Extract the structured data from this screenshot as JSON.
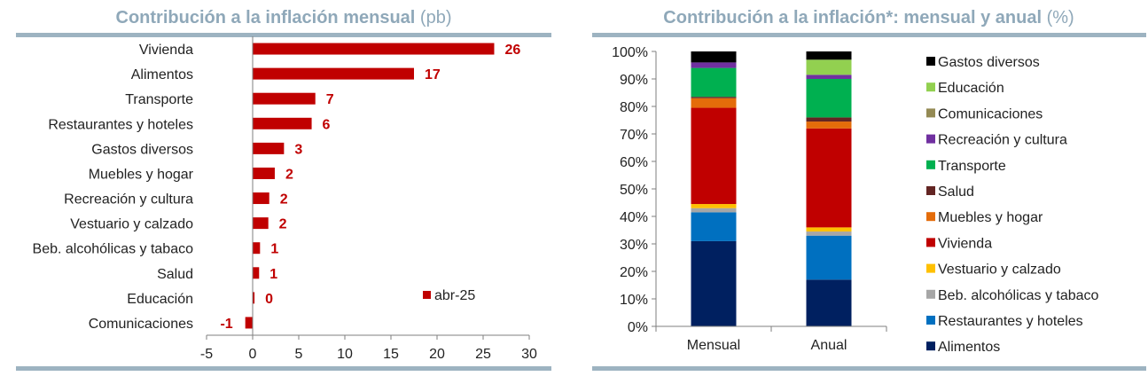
{
  "chart_data": [
    {
      "type": "bar",
      "orientation": "horizontal",
      "title": "Contribución a la inflación mensual",
      "unit": "(pb)",
      "categories": [
        "Vivienda",
        "Alimentos",
        "Transporte",
        "Restaurantes y hoteles",
        "Gastos diversos",
        "Muebles y hogar",
        "Recreación y cultura",
        "Vestuario y calzado",
        "Beb. alcohólicas y tabaco",
        "Salud",
        "Educación",
        "Comunicaciones"
      ],
      "values": [
        26.2,
        17.5,
        6.8,
        6.4,
        3.4,
        2.4,
        1.8,
        1.7,
        0.8,
        0.7,
        0.2,
        -0.8
      ],
      "data_labels": [
        "26",
        "17",
        "7",
        "6",
        "3",
        "2",
        "2",
        "2",
        "1",
        "1",
        "0",
        "-1"
      ],
      "series": [
        {
          "name": "abr-25",
          "color": "#c00000"
        }
      ],
      "xlim": [
        -5,
        30
      ],
      "xticks": [
        "-5",
        "0",
        "5",
        "10",
        "15",
        "20",
        "25",
        "30"
      ],
      "legend_position": "bottom-right",
      "grid": false
    },
    {
      "type": "bar",
      "stacked": true,
      "percent": true,
      "title": "Contribución a la inflación*: mensual y anual",
      "unit": "(%)",
      "categories": [
        "Mensual",
        "Anual"
      ],
      "yticks": [
        "0%",
        "10%",
        "20%",
        "30%",
        "40%",
        "50%",
        "60%",
        "70%",
        "80%",
        "90%",
        "100%"
      ],
      "ylim": [
        0,
        100
      ],
      "grid": false,
      "legend_position": "right",
      "series": [
        {
          "name": "Alimentos",
          "color": "#002060",
          "values": [
            31,
            17
          ]
        },
        {
          "name": "Restaurantes y hoteles",
          "color": "#0070c0",
          "values": [
            10.5,
            16
          ]
        },
        {
          "name": "Beb. alcohólicas y tabaco",
          "color": "#a6a6a6",
          "values": [
            1.5,
            1.5
          ]
        },
        {
          "name": "Vestuario y calzado",
          "color": "#ffc000",
          "values": [
            1.5,
            1.5
          ]
        },
        {
          "name": "Vivienda",
          "color": "#c00000",
          "values": [
            35,
            36
          ]
        },
        {
          "name": "Muebles y hogar",
          "color": "#e46c0a",
          "values": [
            3.5,
            2.5
          ]
        },
        {
          "name": "Salud",
          "color": "#632523",
          "values": [
            0.5,
            1.5
          ]
        },
        {
          "name": "Transporte",
          "color": "#00b050",
          "values": [
            10.5,
            14
          ]
        },
        {
          "name": "Recreación y cultura",
          "color": "#7030a0",
          "values": [
            2,
            1.5
          ]
        },
        {
          "name": "Comunicaciones",
          "color": "#948a54",
          "values": [
            0,
            0
          ]
        },
        {
          "name": "Educación",
          "color": "#92d050",
          "values": [
            0,
            5.5
          ]
        },
        {
          "name": "Gastos diversos",
          "color": "#000000",
          "values": [
            4,
            3
          ]
        }
      ]
    }
  ]
}
